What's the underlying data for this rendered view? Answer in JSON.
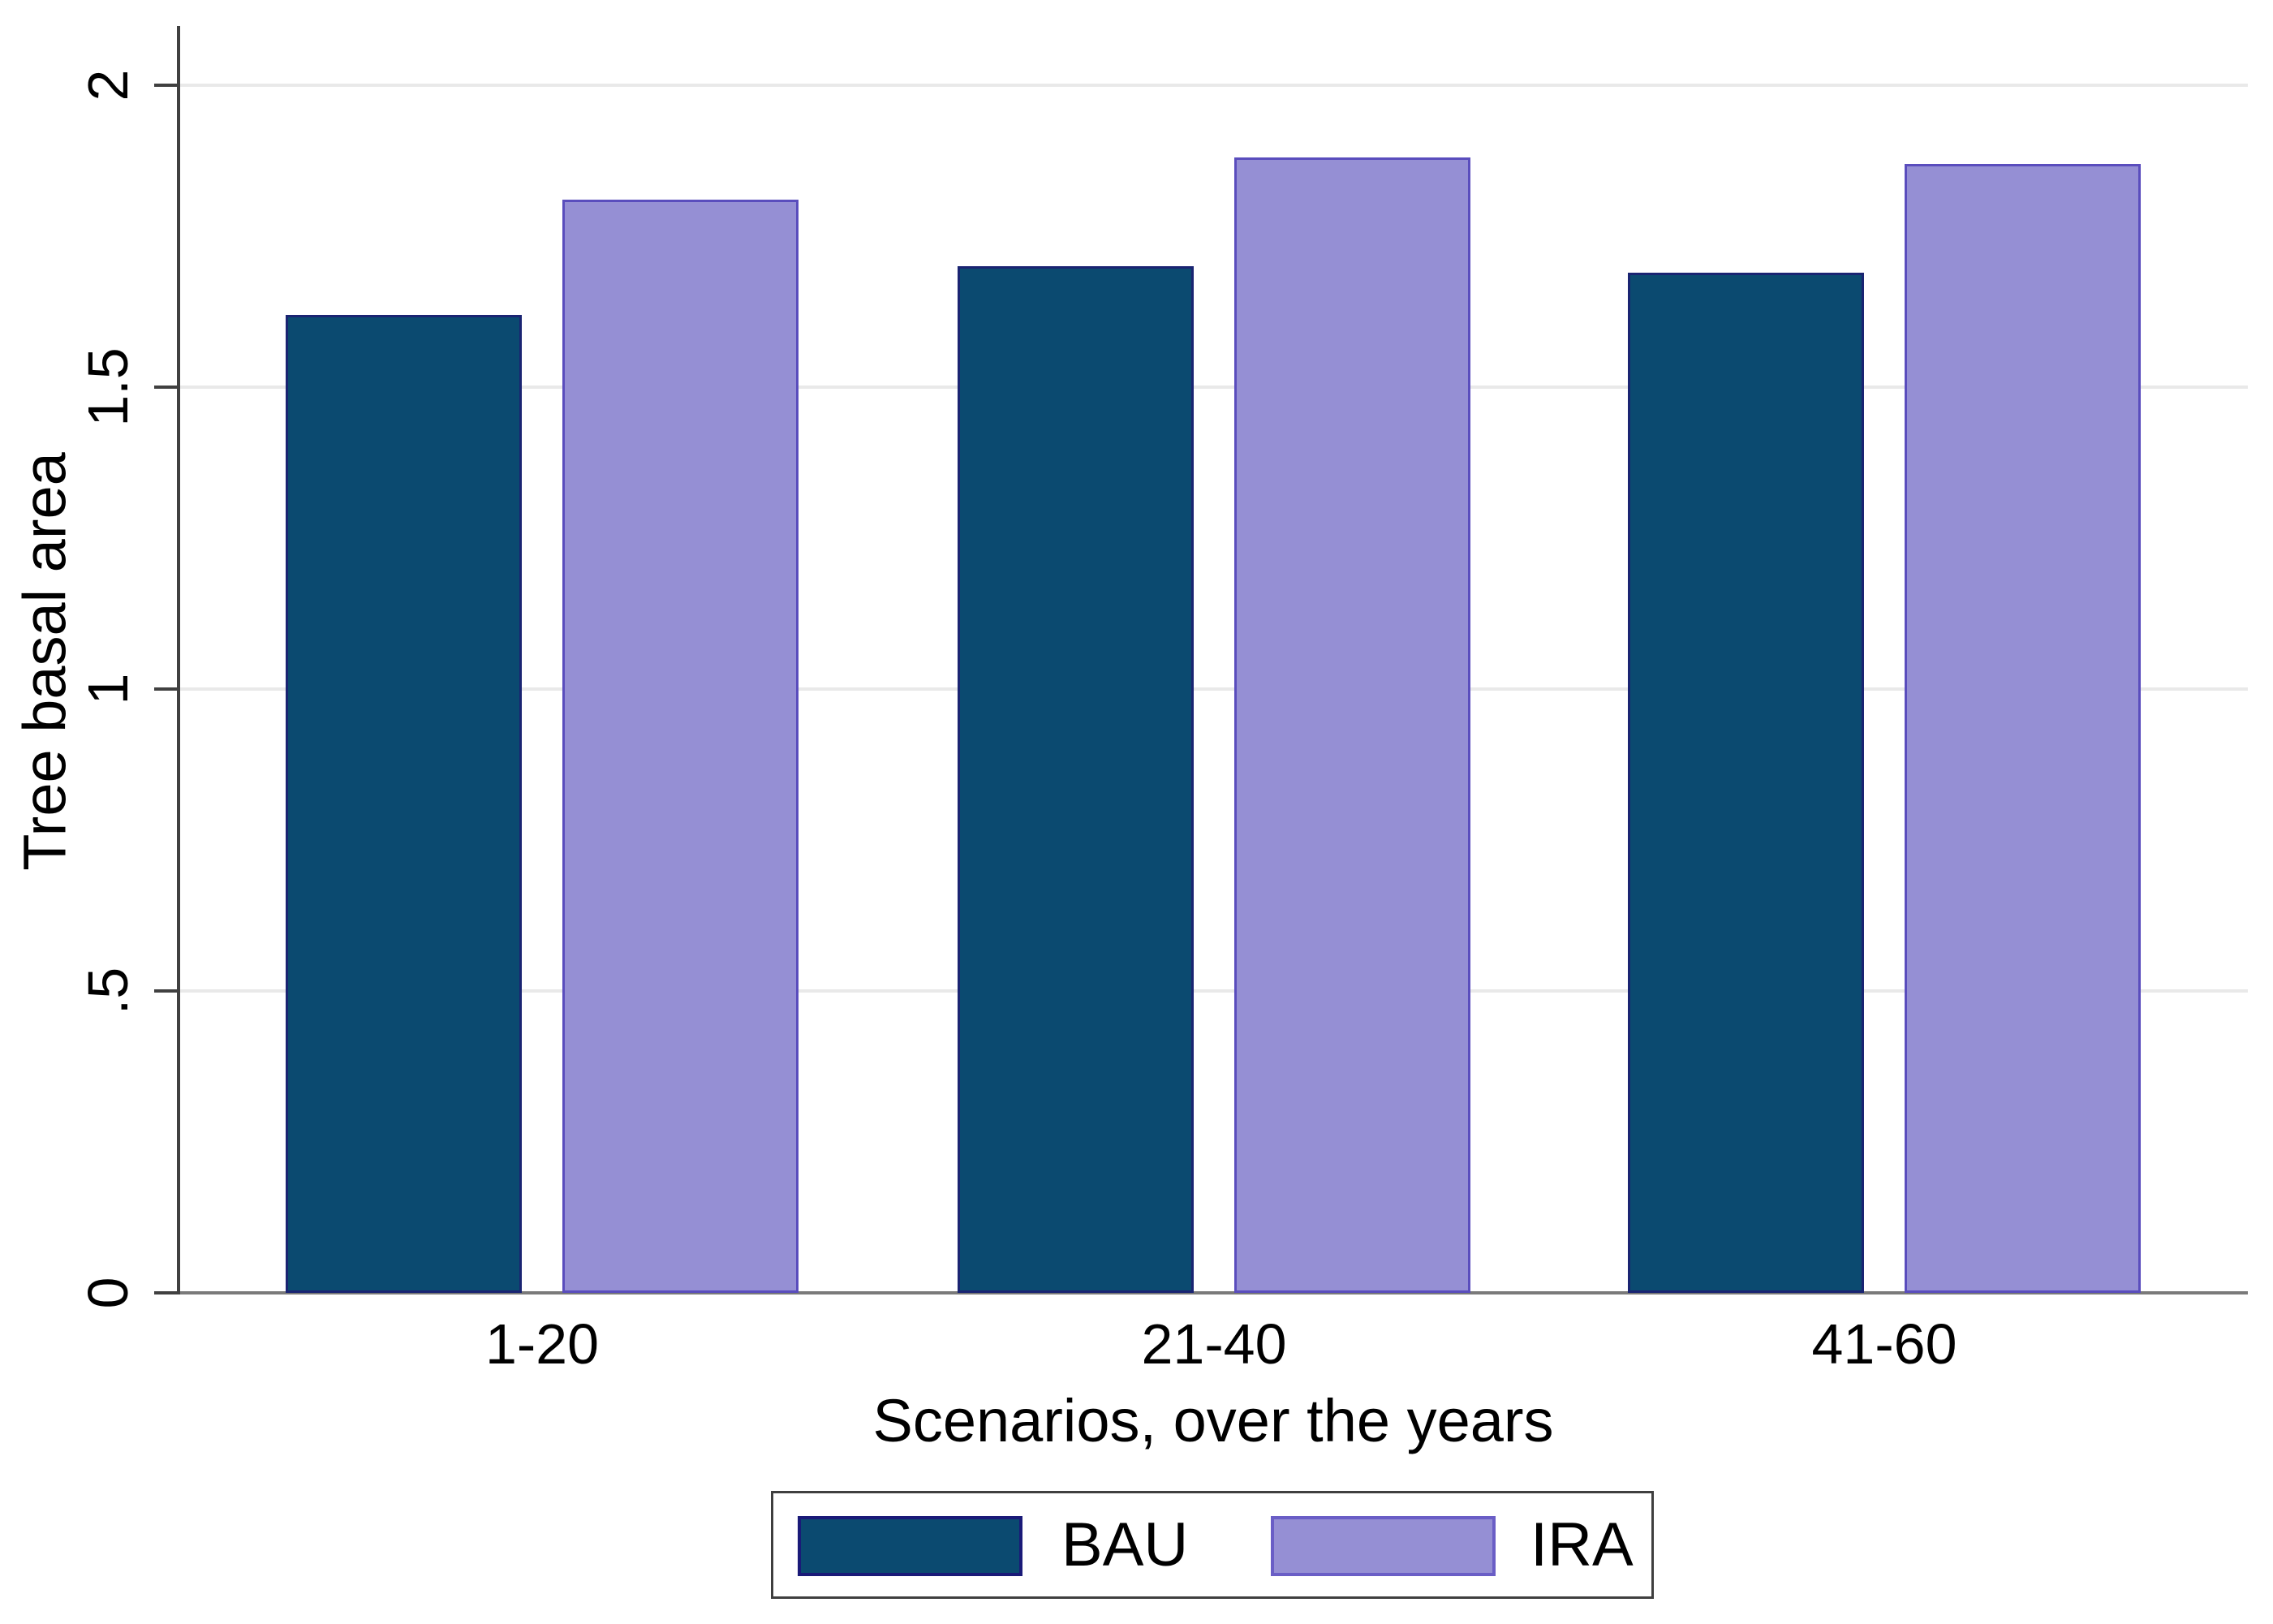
{
  "chart_data": {
    "type": "bar",
    "categories": [
      "1-20",
      "21-40",
      "41-60"
    ],
    "series": [
      {
        "name": "BAU",
        "color": "#0b4a70",
        "border_color": "#1a2472",
        "values": [
          1.62,
          1.7,
          1.69
        ]
      },
      {
        "name": "IRA",
        "color": "#958fd4",
        "border_color": "#5a4dbd",
        "values": [
          1.81,
          1.88,
          1.87
        ]
      }
    ],
    "xlabel": "Scenarios, over the years",
    "ylabel": "Tree basal area",
    "ylim": [
      0,
      2
    ],
    "yticks": [
      0,
      0.5,
      1,
      1.5,
      2
    ],
    "ytick_labels": [
      "0",
      ".5",
      "1",
      "1.5",
      "2"
    ],
    "grid": true,
    "gridline_color": "#e9e9e9",
    "legend_position": "bottom"
  },
  "legend": {
    "items": [
      {
        "label": "BAU",
        "swatch_color": "#0b4a70",
        "swatch_border": "#1a1a78"
      },
      {
        "label": "IRA",
        "swatch_color": "#958fd4",
        "swatch_border": "#6a5ec6"
      }
    ]
  }
}
